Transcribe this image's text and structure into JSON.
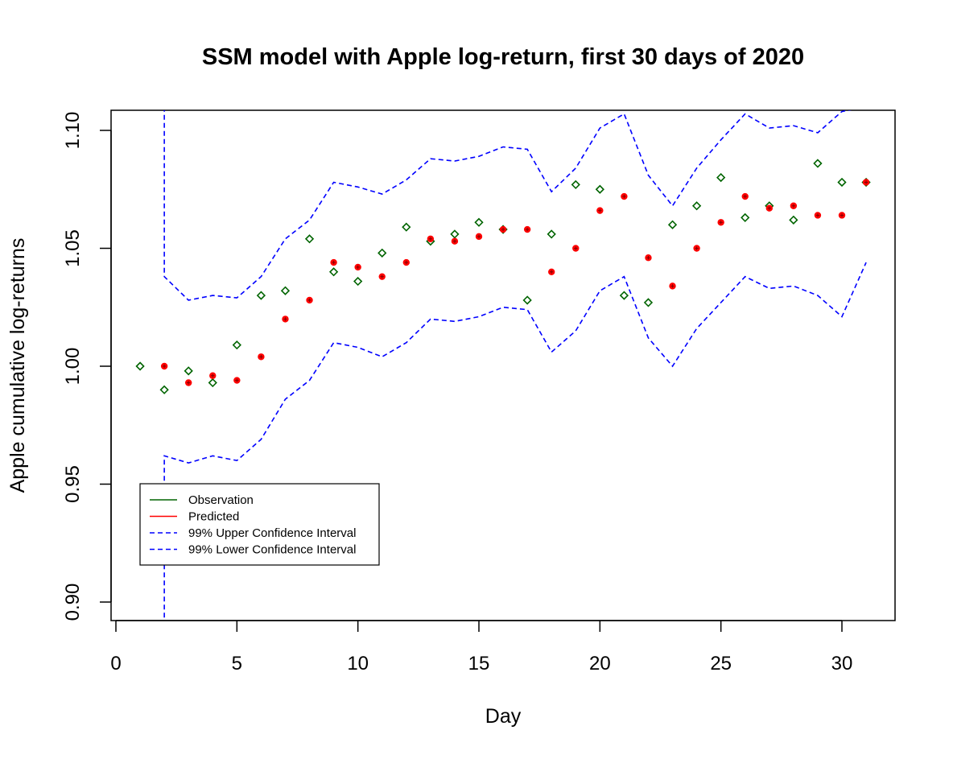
{
  "chart_data": {
    "type": "scatter",
    "title": "SSM model with Apple log-return, first 30 days of 2020",
    "xlabel": "Day",
    "ylabel": "Apple cumulative log-returns",
    "xlim": [
      0,
      32
    ],
    "ylim": [
      0.892,
      1.108
    ],
    "x_ticks": [
      0,
      5,
      10,
      15,
      20,
      25,
      30
    ],
    "x_tick_labels": [
      "0",
      "5",
      "10",
      "15",
      "20",
      "25",
      "30"
    ],
    "y_ticks": [
      0.9,
      0.95,
      1.0,
      1.05,
      1.1
    ],
    "y_tick_labels": [
      "0.90",
      "0.95",
      "1.00",
      "1.05",
      "1.10"
    ],
    "grid": false,
    "legend_position": "bottom-left",
    "series": [
      {
        "name": "Observation",
        "color": "#006400",
        "marker": "diamond",
        "x": [
          1,
          2,
          3,
          4,
          5,
          6,
          7,
          8,
          9,
          10,
          11,
          12,
          13,
          14,
          15,
          16,
          17,
          18,
          19,
          20,
          21,
          22,
          23,
          24,
          25,
          26,
          27,
          28,
          29,
          30,
          31
        ],
        "y": [
          1.0,
          0.99,
          0.998,
          0.993,
          1.009,
          1.03,
          1.032,
          1.054,
          1.04,
          1.036,
          1.048,
          1.059,
          1.053,
          1.056,
          1.061,
          1.058,
          1.028,
          1.056,
          1.077,
          1.075,
          1.03,
          1.027,
          1.06,
          1.068,
          1.08,
          1.063,
          1.068,
          1.062,
          1.086,
          1.078,
          1.078
        ]
      },
      {
        "name": "Predicted",
        "color": "#ff0000",
        "marker": "circle-plus",
        "x": [
          2,
          3,
          4,
          5,
          6,
          7,
          8,
          9,
          10,
          11,
          12,
          13,
          14,
          15,
          16,
          17,
          18,
          19,
          20,
          21,
          22,
          23,
          24,
          25,
          26,
          27,
          28,
          29,
          30,
          31
        ],
        "y": [
          1.0,
          0.993,
          0.996,
          0.994,
          1.004,
          1.02,
          1.028,
          1.044,
          1.042,
          1.038,
          1.044,
          1.054,
          1.053,
          1.055,
          1.058,
          1.058,
          1.04,
          1.05,
          1.066,
          1.072,
          1.046,
          1.034,
          1.05,
          1.061,
          1.072,
          1.067,
          1.068,
          1.064,
          1.064,
          1.078
        ]
      },
      {
        "name": "99% Upper Confidence Interval",
        "color": "#0000ff",
        "line": "dashed",
        "x": [
          2,
          2,
          3,
          4,
          5,
          6,
          7,
          8,
          9,
          10,
          11,
          12,
          13,
          14,
          15,
          16,
          17,
          18,
          19,
          20,
          21,
          22,
          23,
          24,
          25,
          26,
          27,
          28,
          29,
          30,
          31
        ],
        "y": [
          1.11,
          1.038,
          1.028,
          1.03,
          1.029,
          1.038,
          1.054,
          1.062,
          1.078,
          1.076,
          1.073,
          1.079,
          1.088,
          1.087,
          1.089,
          1.093,
          1.092,
          1.074,
          1.084,
          1.101,
          1.107,
          1.081,
          1.068,
          1.084,
          1.096,
          1.107,
          1.101,
          1.102,
          1.099,
          1.108,
          1.11
        ]
      },
      {
        "name": "99% Lower Confidence Interval",
        "color": "#0000ff",
        "line": "dashed",
        "x": [
          2,
          2,
          3,
          4,
          5,
          6,
          7,
          8,
          9,
          10,
          11,
          12,
          13,
          14,
          15,
          16,
          17,
          18,
          19,
          20,
          21,
          22,
          23,
          24,
          25,
          26,
          27,
          28,
          29,
          30,
          31
        ],
        "y": [
          0.89,
          0.962,
          0.959,
          0.962,
          0.96,
          0.969,
          0.986,
          0.994,
          1.01,
          1.008,
          1.004,
          1.01,
          1.02,
          1.019,
          1.021,
          1.025,
          1.024,
          1.006,
          1.015,
          1.032,
          1.038,
          1.012,
          1.0,
          1.016,
          1.027,
          1.038,
          1.033,
          1.034,
          1.03,
          1.021,
          1.044
        ]
      }
    ]
  }
}
